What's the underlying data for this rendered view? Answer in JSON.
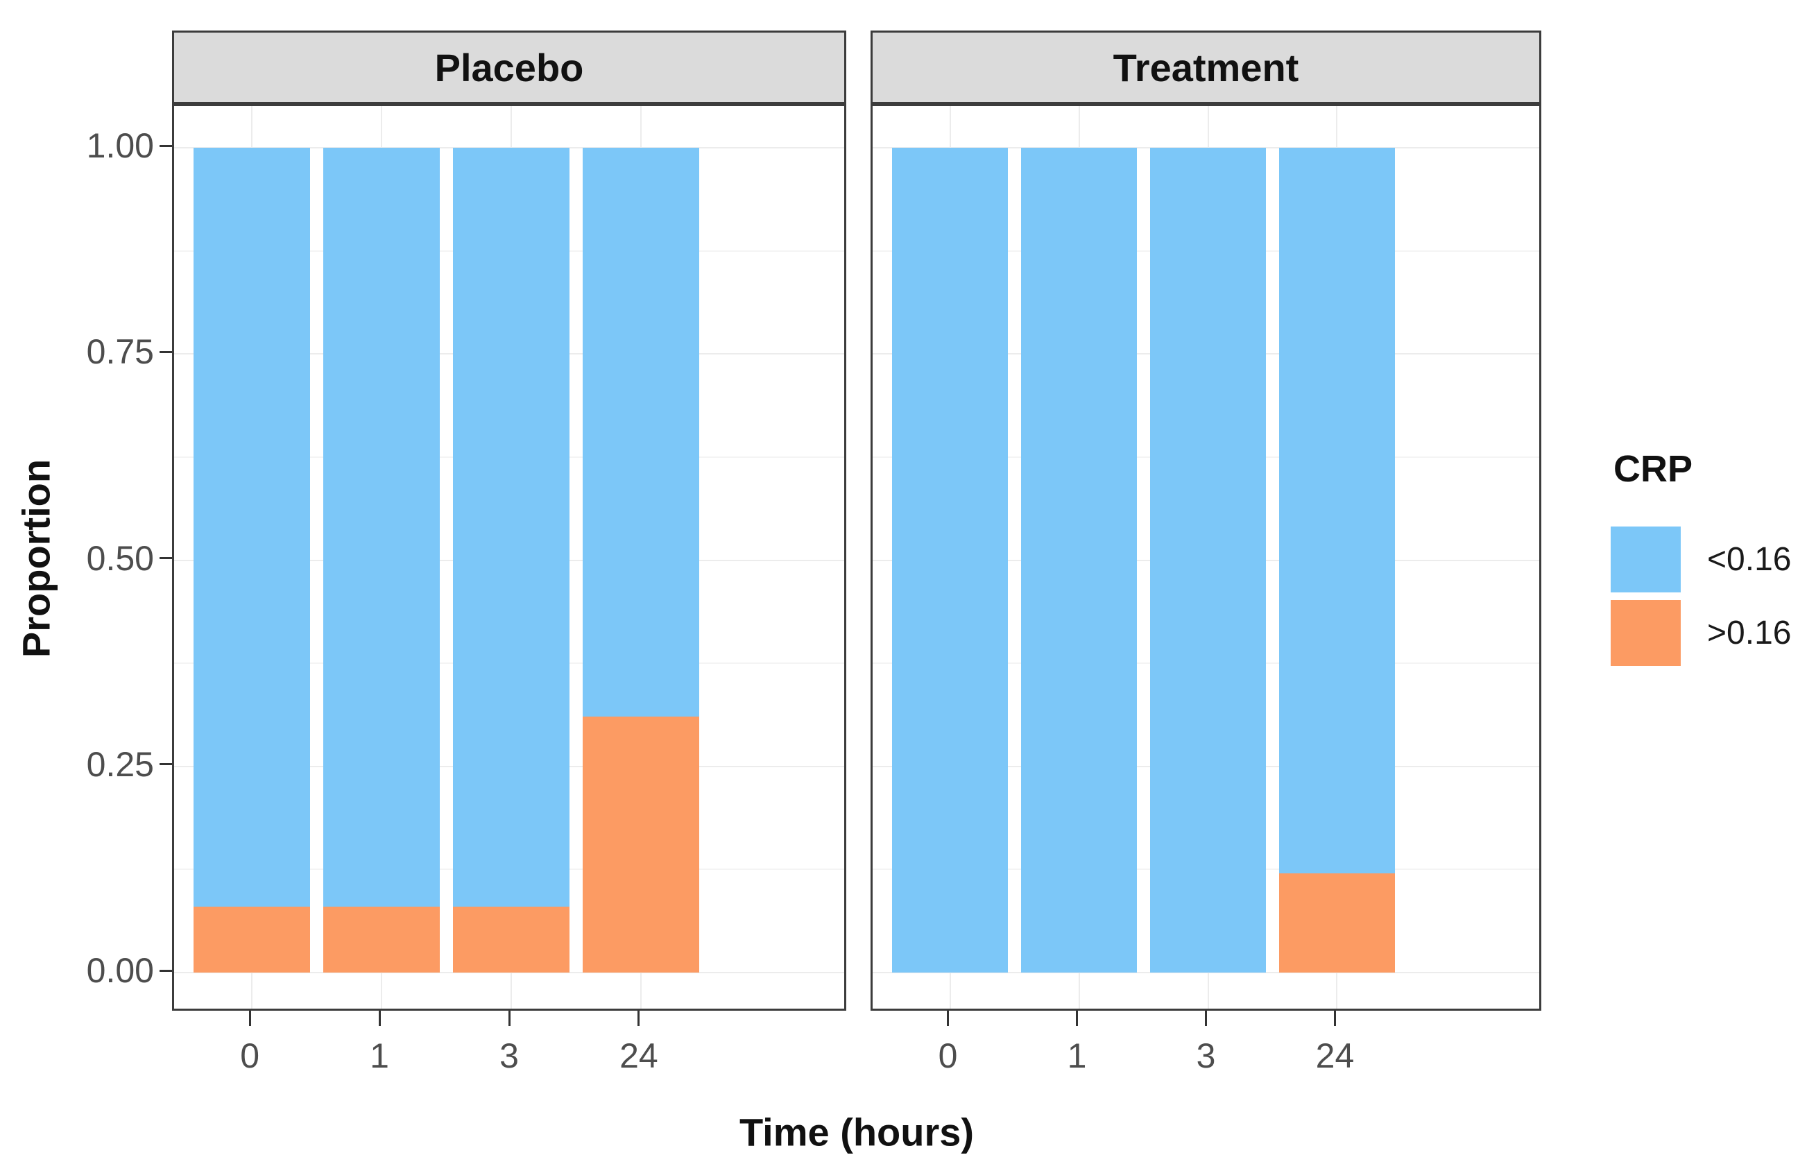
{
  "chart_data": {
    "type": "bar",
    "subtype": "stacked-proportion-faceted",
    "categories": [
      "0",
      "1",
      "3",
      "24"
    ],
    "facets": [
      {
        "label": "Placebo",
        "series": [
          {
            "name": "<0.16",
            "values": [
              0.92,
              0.92,
              0.92,
              0.69
            ]
          },
          {
            "name": ">0.16",
            "values": [
              0.08,
              0.08,
              0.08,
              0.31
            ]
          }
        ]
      },
      {
        "label": "Treatment",
        "series": [
          {
            "name": "<0.16",
            "values": [
              1.0,
              1.0,
              1.0,
              0.88
            ]
          },
          {
            "name": ">0.16",
            "values": [
              0.0,
              0.0,
              0.0,
              0.12
            ]
          }
        ]
      }
    ],
    "stack_order_bottom_to_top": [
      ">0.16",
      "<0.16"
    ],
    "title": "",
    "xlabel": "Time (hours)",
    "ylabel": "Proportion",
    "ylim": [
      0,
      1
    ],
    "y_major_ticks": [
      {
        "value": 1.0,
        "label": "1.00"
      },
      {
        "value": 0.75,
        "label": "0.75"
      },
      {
        "value": 0.5,
        "label": "0.50"
      },
      {
        "value": 0.25,
        "label": "0.25"
      },
      {
        "value": 0.0,
        "label": "0.00"
      }
    ],
    "y_minor_ticks": [
      0.875,
      0.625,
      0.375,
      0.125
    ],
    "grid": true,
    "legend": {
      "title": "CRP",
      "position": "right",
      "entries": [
        {
          "label": "<0.16",
          "color": "#7CC7F8"
        },
        {
          "label": ">0.16",
          "color": "#FC9B63"
        }
      ]
    }
  }
}
